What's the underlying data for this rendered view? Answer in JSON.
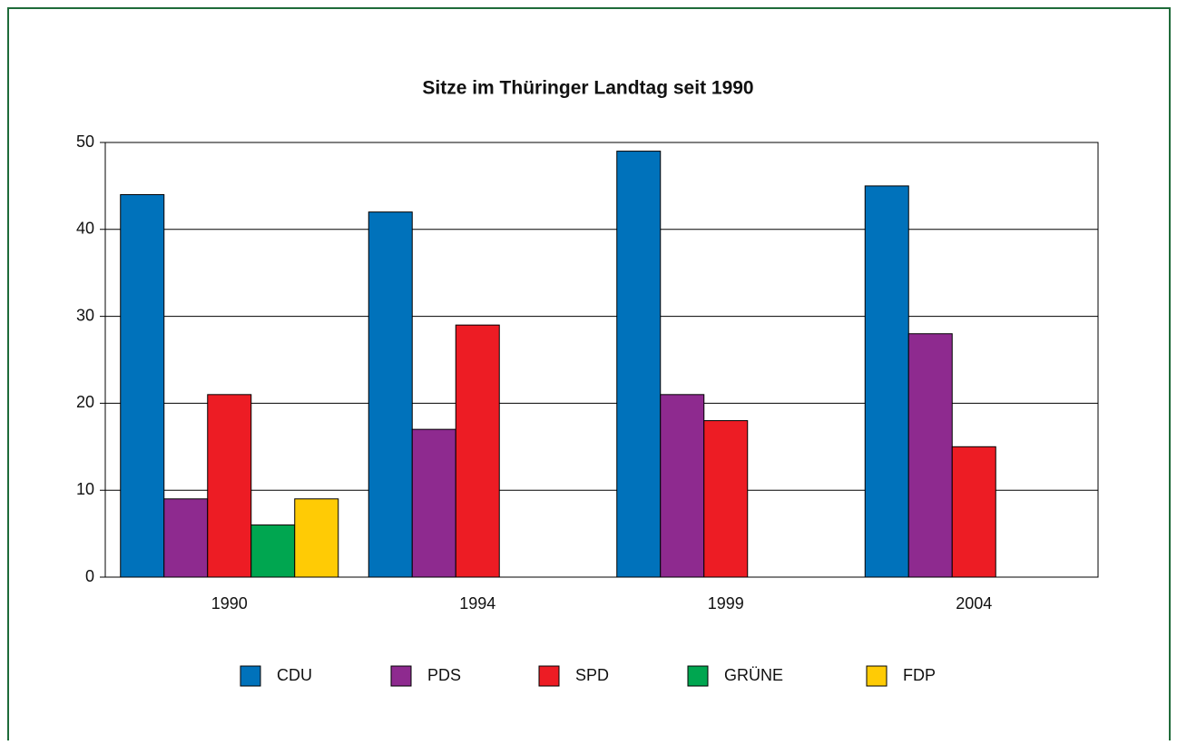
{
  "chart_data": {
    "type": "bar",
    "title": "Sitze im Thüringer Landtag seit 1990",
    "categories": [
      "1990",
      "1994",
      "1999",
      "2004"
    ],
    "series": [
      {
        "name": "CDU",
        "color": "#0072bb",
        "values": [
          44,
          42,
          49,
          45
        ]
      },
      {
        "name": "PDS",
        "color": "#8e2a8f",
        "values": [
          9,
          17,
          21,
          28
        ]
      },
      {
        "name": "SPD",
        "color": "#ed1c24",
        "values": [
          21,
          29,
          18,
          15
        ]
      },
      {
        "name": "GRÜNE",
        "color": "#00a650",
        "values": [
          6,
          0,
          0,
          0
        ]
      },
      {
        "name": "FDP",
        "color": "#ffcb05",
        "values": [
          9,
          0,
          0,
          0
        ]
      }
    ],
    "ylim": [
      0,
      50
    ],
    "yticks": [
      0,
      10,
      20,
      30,
      40,
      50
    ],
    "grid": true
  }
}
